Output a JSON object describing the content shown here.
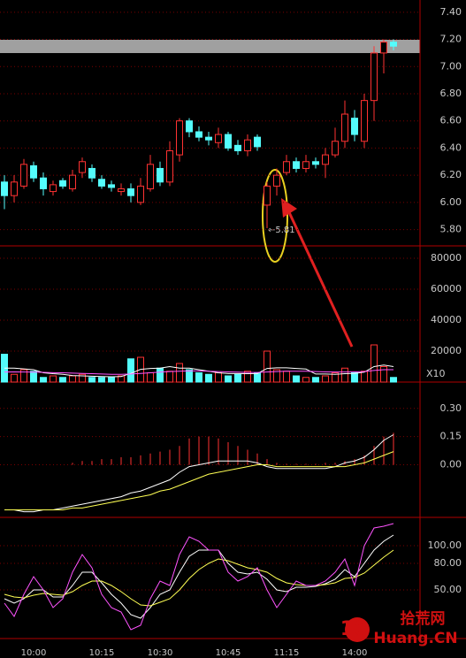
{
  "chart_data": [
    {
      "type": "candlestick",
      "up_color": "#ff3232",
      "down_color": "#54fcfc",
      "categories": [
        null,
        null,
        null,
        "10:00",
        null,
        null,
        null,
        null,
        null,
        null,
        "10:15",
        null,
        null,
        null,
        null,
        null,
        "10:30",
        null,
        null,
        null,
        null,
        null,
        null,
        "10:45",
        null,
        null,
        null,
        null,
        null,
        "11:15",
        null,
        null,
        null,
        null,
        null,
        null,
        "14:00",
        null,
        null,
        null,
        null
      ],
      "open": [
        6.15,
        6.05,
        6.12,
        6.27,
        6.18,
        6.08,
        6.16,
        6.1,
        6.22,
        6.25,
        6.17,
        6.13,
        6.08,
        6.1,
        6.0,
        6.1,
        6.25,
        6.15,
        6.35,
        6.6,
        6.52,
        6.48,
        6.44,
        6.5,
        6.42,
        6.38,
        6.48,
        5.98,
        6.12,
        6.22,
        6.3,
        6.25,
        6.3,
        6.28,
        6.35,
        6.45,
        6.62,
        6.45,
        6.75,
        7.1,
        7.18
      ],
      "high": [
        6.2,
        6.2,
        6.32,
        6.3,
        6.22,
        6.16,
        6.18,
        6.24,
        6.33,
        6.28,
        6.2,
        6.16,
        6.14,
        6.14,
        6.18,
        6.35,
        6.3,
        6.45,
        6.62,
        6.62,
        6.56,
        6.52,
        6.55,
        6.52,
        6.46,
        6.5,
        6.5,
        6.15,
        6.25,
        6.35,
        6.33,
        6.35,
        6.33,
        6.4,
        6.55,
        6.75,
        6.68,
        6.8,
        7.15,
        7.2,
        7.2
      ],
      "low": [
        5.95,
        6.0,
        6.1,
        6.15,
        6.05,
        6.05,
        6.1,
        6.08,
        6.18,
        6.15,
        6.1,
        6.08,
        6.05,
        6.0,
        5.98,
        6.08,
        6.12,
        6.12,
        6.3,
        6.48,
        6.45,
        6.42,
        6.4,
        6.38,
        6.35,
        6.34,
        6.38,
        5.81,
        6.05,
        6.2,
        6.22,
        6.22,
        6.25,
        6.18,
        6.33,
        6.4,
        6.45,
        6.4,
        6.6,
        6.95,
        7.12
      ],
      "close": [
        6.05,
        6.15,
        6.28,
        6.18,
        6.1,
        6.13,
        6.12,
        6.2,
        6.3,
        6.18,
        6.12,
        6.11,
        6.1,
        6.05,
        6.12,
        6.28,
        6.15,
        6.38,
        6.6,
        6.52,
        6.48,
        6.46,
        6.5,
        6.4,
        6.38,
        6.46,
        6.41,
        6.12,
        6.2,
        6.3,
        6.25,
        6.3,
        6.28,
        6.35,
        6.45,
        6.65,
        6.5,
        6.75,
        7.1,
        7.18,
        7.15
      ],
      "ylim": [
        5.68,
        7.49
      ],
      "yticks": [
        {
          "value": 7.4,
          "label": "7.40"
        },
        {
          "value": 7.2,
          "label": "7.20"
        },
        {
          "value": 7.0,
          "label": "7.00"
        },
        {
          "value": 6.8,
          "label": "6.80"
        },
        {
          "value": 6.6,
          "label": "6.60"
        },
        {
          "value": 6.4,
          "label": "6.40"
        },
        {
          "value": 6.2,
          "label": "6.20"
        },
        {
          "value": 6.0,
          "label": "6.00"
        },
        {
          "value": 5.8,
          "label": "5.80"
        }
      ],
      "annotation": "←5.81",
      "grid": true
    },
    {
      "type": "volume",
      "ylim": [
        0,
        88000
      ],
      "yticks": [
        80000,
        60000,
        40000,
        20000
      ],
      "unit_label": "X10",
      "values": [
        18000,
        5000,
        8000,
        7000,
        3000,
        4000,
        3000,
        4000,
        5000,
        3000,
        3000,
        3000,
        4000,
        15000,
        16000,
        6000,
        9000,
        7000,
        12000,
        8000,
        6000,
        5000,
        6000,
        4000,
        5000,
        7000,
        6000,
        20000,
        8000,
        7000,
        4000,
        3000,
        3000,
        4000,
        6000,
        9000,
        6000,
        7000,
        24000,
        10000,
        3000
      ],
      "series": [
        {
          "color": "#ffffff",
          "values": [
            9000,
            9000,
            8500,
            8000,
            6000,
            5400,
            5000,
            4200,
            4000,
            3800,
            3600,
            3400,
            3600,
            5600,
            8200,
            8800,
            9000,
            10000,
            9000,
            9000,
            8000,
            7000,
            6000,
            5500,
            5500,
            5400,
            5500,
            8800,
            9200,
            9200,
            8800,
            8400,
            5200,
            5200,
            5000,
            5400,
            5600,
            6400,
            10000,
            11000,
            10000
          ]
        },
        {
          "color": "#ff54ff",
          "values": [
            6500,
            6600,
            6500,
            6400,
            6300,
            6100,
            6000,
            5800,
            5600,
            5400,
            5200,
            5000,
            5000,
            5200,
            5600,
            6000,
            6400,
            6800,
            7000,
            7200,
            7200,
            7000,
            6800,
            6600,
            6400,
            6200,
            6200,
            6500,
            6800,
            7000,
            7000,
            7000,
            6800,
            6600,
            6500,
            6500,
            6600,
            6800,
            7500,
            8000,
            8000
          ]
        }
      ]
    },
    {
      "type": "macd",
      "ylim": [
        -0.28,
        0.44
      ],
      "yticks": [
        {
          "value": 0.3,
          "label": "0.30"
        },
        {
          "value": 0.15,
          "label": "0.15"
        },
        {
          "value": 0,
          "label": "0.00"
        }
      ],
      "histogram": {
        "color": "#ff3232",
        "values": [
          0,
          0,
          0,
          0,
          0,
          0,
          0,
          0.01,
          0.02,
          0.02,
          0.03,
          0.03,
          0.04,
          0.04,
          0.05,
          0.06,
          0.07,
          0.08,
          0.1,
          0.14,
          0.15,
          0.15,
          0.14,
          0.12,
          0.1,
          0.08,
          0.06,
          0.03,
          0.01,
          0.005,
          0.005,
          0.005,
          0.005,
          0.01,
          0.01,
          0.02,
          0.03,
          0.05,
          0.1,
          0.15,
          0.17
        ]
      },
      "series": [
        {
          "color": "#ffffff",
          "values": [
            -0.24,
            -0.24,
            -0.25,
            -0.25,
            -0.24,
            -0.24,
            -0.23,
            -0.22,
            -0.21,
            -0.2,
            -0.19,
            -0.18,
            -0.17,
            -0.15,
            -0.14,
            -0.12,
            -0.1,
            -0.08,
            -0.04,
            -0.01,
            0,
            0.01,
            0.02,
            0.02,
            0.02,
            0.02,
            0.01,
            -0.01,
            -0.02,
            -0.02,
            -0.02,
            -0.02,
            -0.02,
            -0.02,
            -0.01,
            0.01,
            0.02,
            0.04,
            0.08,
            0.13,
            0.16
          ]
        },
        {
          "color": "#ffff54",
          "values": [
            -0.24,
            -0.24,
            -0.24,
            -0.24,
            -0.24,
            -0.24,
            -0.24,
            -0.23,
            -0.23,
            -0.22,
            -0.21,
            -0.2,
            -0.19,
            -0.18,
            -0.17,
            -0.16,
            -0.14,
            -0.13,
            -0.11,
            -0.09,
            -0.07,
            -0.05,
            -0.04,
            -0.03,
            -0.02,
            -0.01,
            0,
            0,
            -0.01,
            -0.01,
            -0.01,
            -0.01,
            -0.01,
            -0.01,
            -0.01,
            -0.01,
            0,
            0.01,
            0.03,
            0.05,
            0.07
          ]
        }
      ]
    },
    {
      "type": "kdj",
      "ylim": [
        -3,
        132
      ],
      "yticks": [
        {
          "value": 100,
          "label": "100.00"
        },
        {
          "value": 80,
          "label": "80.00"
        },
        {
          "value": 50,
          "label": "50.00"
        }
      ],
      "series": [
        {
          "color": "#ffffff",
          "values": [
            40,
            35,
            40,
            50,
            50,
            42,
            42,
            55,
            70,
            70,
            58,
            45,
            35,
            22,
            18,
            30,
            45,
            50,
            70,
            88,
            95,
            95,
            95,
            80,
            70,
            68,
            70,
            62,
            50,
            48,
            53,
            53,
            54,
            57,
            62,
            73,
            65,
            80,
            95,
            105,
            112
          ]
        },
        {
          "color": "#ffff54",
          "values": [
            45,
            42,
            41,
            44,
            46,
            45,
            44,
            48,
            55,
            60,
            60,
            55,
            48,
            40,
            33,
            32,
            36,
            40,
            50,
            63,
            73,
            80,
            85,
            83,
            79,
            75,
            73,
            70,
            63,
            58,
            56,
            55,
            55,
            56,
            58,
            63,
            64,
            69,
            78,
            87,
            95
          ]
        },
        {
          "color": "#ff54ff",
          "values": [
            35,
            20,
            45,
            65,
            50,
            30,
            40,
            70,
            90,
            75,
            45,
            30,
            25,
            5,
            10,
            40,
            60,
            55,
            90,
            110,
            105,
            95,
            95,
            70,
            60,
            65,
            75,
            50,
            30,
            45,
            60,
            55,
            55,
            60,
            70,
            85,
            55,
            100,
            120,
            122,
            125
          ]
        }
      ]
    }
  ],
  "logo": {
    "number": "10",
    "name": "拾荒网",
    "domain": "Huang.CN"
  }
}
